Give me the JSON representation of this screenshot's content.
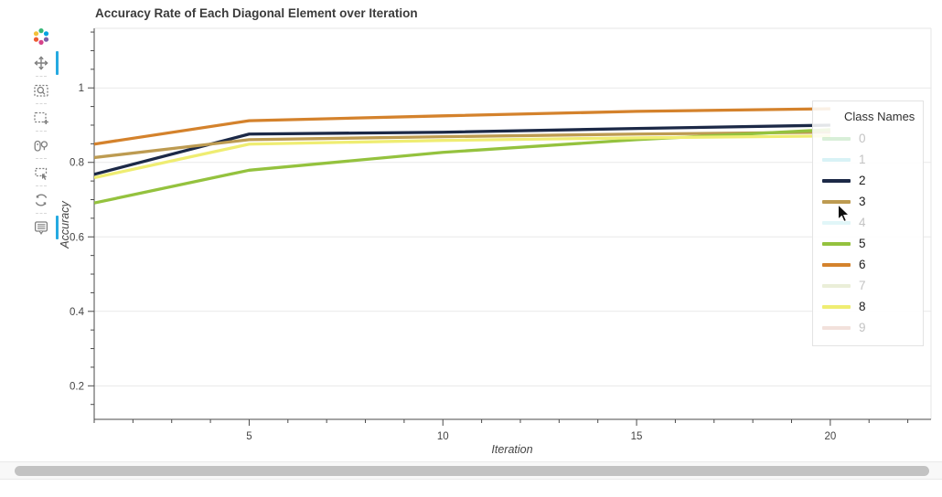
{
  "chart_data": {
    "type": "line",
    "title": "Accuracy Rate of Each Diagonal Element over Iteration",
    "xlabel": "Iteration",
    "ylabel": "Accuracy",
    "legend_title": "Class Names",
    "legend_position": "top-right-inside",
    "grid": "horizontal-only",
    "x_range": [
      1,
      22.6
    ],
    "y_range": [
      0.11,
      1.16
    ],
    "x_ticks": [
      5,
      10,
      15,
      20
    ],
    "x_tick_labels": [
      "5",
      "10",
      "15",
      "20"
    ],
    "x_minor_step": 1,
    "y_ticks": [
      0.2,
      0.4,
      0.6,
      0.8,
      1.0
    ],
    "y_tick_labels": [
      "0.2",
      "0.4",
      "0.6",
      "0.8",
      "1"
    ],
    "y_minor_step": 0.05,
    "x": [
      1,
      5,
      10,
      15,
      20
    ],
    "series": [
      {
        "name": "0",
        "color": "#8fd08f",
        "muted": true,
        "values": null
      },
      {
        "name": "1",
        "color": "#8fd9e4",
        "muted": true,
        "values": null
      },
      {
        "name": "2",
        "color": "#1c2947",
        "muted": false,
        "values": [
          0.768,
          0.876,
          0.881,
          0.891,
          0.9
        ]
      },
      {
        "name": "3",
        "color": "#bd9b51",
        "muted": false,
        "values": [
          0.813,
          0.861,
          0.869,
          0.876,
          0.881
        ]
      },
      {
        "name": "4",
        "color": "#a9e5ec",
        "muted": true,
        "values": null
      },
      {
        "name": "5",
        "color": "#94c23e",
        "muted": false,
        "values": [
          0.691,
          0.779,
          0.827,
          0.861,
          0.888
        ]
      },
      {
        "name": "6",
        "color": "#d4822c",
        "muted": false,
        "values": [
          0.849,
          0.912,
          0.925,
          0.937,
          0.944
        ]
      },
      {
        "name": "7",
        "color": "#c3cf90",
        "muted": true,
        "values": null
      },
      {
        "name": "8",
        "color": "#efed72",
        "muted": false,
        "values": [
          0.759,
          0.849,
          0.859,
          0.866,
          0.871
        ]
      },
      {
        "name": "9",
        "color": "#dba89b",
        "muted": true,
        "values": null
      }
    ]
  },
  "toolbar": {
    "tools": [
      {
        "name": "pan",
        "active": true
      },
      {
        "name": "box-zoom",
        "active": false
      },
      {
        "name": "box-select",
        "active": false
      },
      {
        "name": "wheel-zoom",
        "active": false
      },
      {
        "name": "lasso-select",
        "active": false
      },
      {
        "name": "reset",
        "active": false
      },
      {
        "name": "hover",
        "active": true
      }
    ]
  },
  "colors": {
    "active_tool_accent": "#26aae1",
    "grid_line": "#e9e9e9",
    "outline": "#e6e6e6",
    "axis_line": "#4a4a4a",
    "tick_label": "#444444",
    "title_text": "#3b3b3b",
    "active_label": "#1c1c1c",
    "muted_label": "#c3c3c3"
  }
}
